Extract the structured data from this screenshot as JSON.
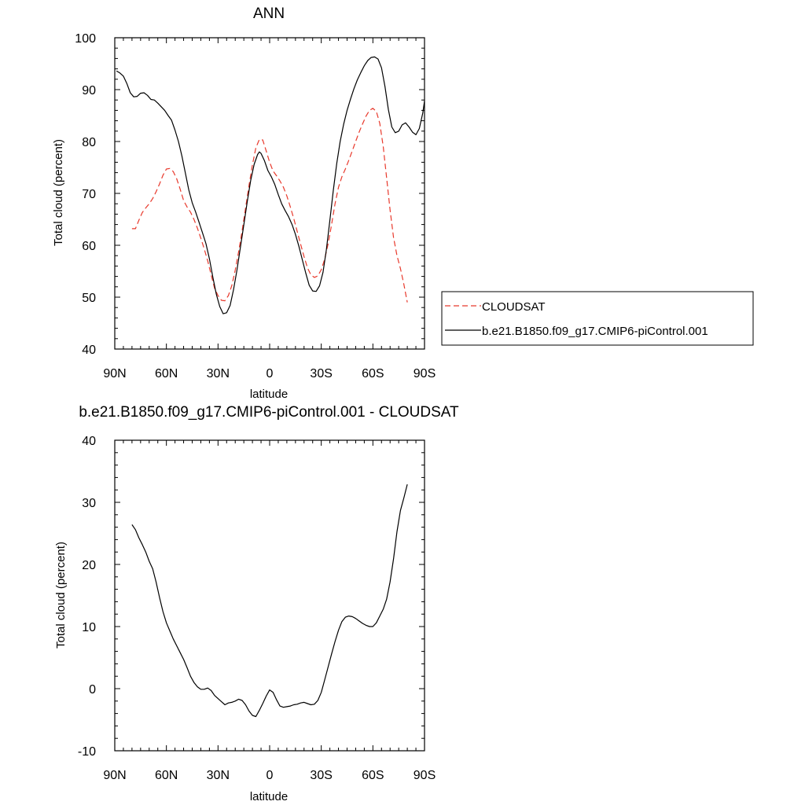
{
  "chart_data": [
    {
      "type": "line",
      "title": "ANN",
      "xlabel": "latitude",
      "ylabel": "Total cloud (percent)",
      "xlim": [
        90,
        -90
      ],
      "ylim": [
        40,
        100
      ],
      "x_ticks": [
        90,
        60,
        30,
        0,
        -30,
        -60,
        -90
      ],
      "x_tick_labels": [
        "90N",
        "60N",
        "30N",
        "0",
        "30S",
        "60S",
        "90S"
      ],
      "y_ticks": [
        40,
        50,
        60,
        70,
        80,
        90,
        100
      ],
      "y_tick_labels": [
        "40",
        "50",
        "60",
        "70",
        "80",
        "90",
        "100"
      ],
      "grid": false,
      "legend_position": "right",
      "series": [
        {
          "name": "CLOUDSAT",
          "color": "#e8392c",
          "dash": "dashed",
          "points": [
            [
              80,
              63.2
            ],
            [
              78,
              63.2
            ],
            [
              76,
              64.8
            ],
            [
              74,
              66.3
            ],
            [
              72,
              67.2
            ],
            [
              70,
              68.0
            ],
            [
              68,
              69.0
            ],
            [
              66,
              70.3
            ],
            [
              64,
              71.8
            ],
            [
              62,
              73.5
            ],
            [
              60,
              74.7
            ],
            [
              58,
              74.8
            ],
            [
              56,
              74.2
            ],
            [
              54,
              72.8
            ],
            [
              52,
              70.8
            ],
            [
              50,
              68.6
            ],
            [
              48,
              67.4
            ],
            [
              46,
              66.4
            ],
            [
              44,
              65.0
            ],
            [
              42,
              63.3
            ],
            [
              40,
              61.4
            ],
            [
              38,
              59.3
            ],
            [
              36,
              57.0
            ],
            [
              34,
              54.3
            ],
            [
              32,
              51.7
            ],
            [
              30,
              50.3
            ],
            [
              28,
              49.4
            ],
            [
              26,
              49.3
            ],
            [
              24,
              50.3
            ],
            [
              22,
              52.2
            ],
            [
              20,
              55.2
            ],
            [
              18,
              58.8
            ],
            [
              16,
              62.8
            ],
            [
              14,
              67.2
            ],
            [
              12,
              71.5
            ],
            [
              10,
              75.5
            ],
            [
              8,
              78.8
            ],
            [
              6,
              80.4
            ],
            [
              4,
              80.3
            ],
            [
              2,
              78.2
            ],
            [
              0,
              76.0
            ],
            [
              -2,
              74.3
            ],
            [
              -4,
              73.4
            ],
            [
              -6,
              72.4
            ],
            [
              -8,
              71.2
            ],
            [
              -10,
              69.5
            ],
            [
              -12,
              67.4
            ],
            [
              -14,
              65.2
            ],
            [
              -16,
              62.7
            ],
            [
              -18,
              60.2
            ],
            [
              -20,
              57.8
            ],
            [
              -22,
              55.6
            ],
            [
              -24,
              54.3
            ],
            [
              -26,
              53.8
            ],
            [
              -28,
              54.1
            ],
            [
              -30,
              55.3
            ],
            [
              -32,
              57.3
            ],
            [
              -34,
              60.3
            ],
            [
              -36,
              64.0
            ],
            [
              -38,
              68.0
            ],
            [
              -40,
              71.2
            ],
            [
              -42,
              73.2
            ],
            [
              -44,
              74.7
            ],
            [
              -46,
              76.4
            ],
            [
              -48,
              78.2
            ],
            [
              -50,
              80.0
            ],
            [
              -52,
              81.8
            ],
            [
              -54,
              83.4
            ],
            [
              -56,
              84.9
            ],
            [
              -58,
              86.0
            ],
            [
              -60,
              86.4
            ],
            [
              -62,
              85.8
            ],
            [
              -64,
              83.5
            ],
            [
              -66,
              79.0
            ],
            [
              -68,
              73.0
            ],
            [
              -70,
              66.8
            ],
            [
              -72,
              61.5
            ],
            [
              -74,
              58.0
            ],
            [
              -76,
              55.5
            ],
            [
              -78,
              52.5
            ],
            [
              -80,
              49.0
            ]
          ]
        },
        {
          "name": "b.e21.B1850.f09_g17.CMIP6-piControl.001",
          "color": "#000000",
          "dash": "solid",
          "points": [
            [
              89,
              93.6
            ],
            [
              87,
              93.2
            ],
            [
              85,
              92.6
            ],
            [
              83,
              91.2
            ],
            [
              81,
              89.4
            ],
            [
              79,
              88.6
            ],
            [
              77,
              88.7
            ],
            [
              75,
              89.3
            ],
            [
              73,
              89.4
            ],
            [
              71,
              88.9
            ],
            [
              69,
              88.1
            ],
            [
              67,
              88.0
            ],
            [
              65,
              87.4
            ],
            [
              63,
              86.7
            ],
            [
              61,
              86.0
            ],
            [
              59,
              85.0
            ],
            [
              57,
              84.1
            ],
            [
              55,
              82.2
            ],
            [
              53,
              80.0
            ],
            [
              51,
              77.2
            ],
            [
              49,
              74.0
            ],
            [
              47,
              70.7
            ],
            [
              45,
              68.2
            ],
            [
              43,
              66.4
            ],
            [
              41,
              64.4
            ],
            [
              39,
              62.4
            ],
            [
              37,
              60.3
            ],
            [
              35,
              57.4
            ],
            [
              33,
              53.8
            ],
            [
              31,
              50.6
            ],
            [
              29,
              48.2
            ],
            [
              27,
              46.8
            ],
            [
              25,
              47.0
            ],
            [
              23,
              48.4
            ],
            [
              21,
              51.4
            ],
            [
              19,
              55.2
            ],
            [
              17,
              59.6
            ],
            [
              15,
              64.0
            ],
            [
              13,
              68.4
            ],
            [
              11,
              72.5
            ],
            [
              9,
              75.6
            ],
            [
              7,
              77.5
            ],
            [
              6,
              78.0
            ],
            [
              5,
              77.7
            ],
            [
              3,
              76.3
            ],
            [
              1,
              74.4
            ],
            [
              -1,
              73.2
            ],
            [
              -3,
              71.7
            ],
            [
              -5,
              69.8
            ],
            [
              -7,
              68.0
            ],
            [
              -9,
              66.7
            ],
            [
              -11,
              65.5
            ],
            [
              -13,
              64.0
            ],
            [
              -15,
              62.1
            ],
            [
              -17,
              59.8
            ],
            [
              -19,
              57.2
            ],
            [
              -21,
              54.6
            ],
            [
              -23,
              52.3
            ],
            [
              -25,
              51.2
            ],
            [
              -27,
              51.1
            ],
            [
              -29,
              52.2
            ],
            [
              -31,
              54.8
            ],
            [
              -33,
              59.2
            ],
            [
              -35,
              64.8
            ],
            [
              -37,
              70.6
            ],
            [
              -39,
              75.8
            ],
            [
              -41,
              80.0
            ],
            [
              -43,
              83.3
            ],
            [
              -45,
              86.0
            ],
            [
              -47,
              88.2
            ],
            [
              -49,
              90.2
            ],
            [
              -51,
              91.9
            ],
            [
              -53,
              93.3
            ],
            [
              -55,
              94.6
            ],
            [
              -57,
              95.6
            ],
            [
              -59,
              96.2
            ],
            [
              -61,
              96.3
            ],
            [
              -63,
              95.9
            ],
            [
              -65,
              94.2
            ],
            [
              -67,
              90.6
            ],
            [
              -69,
              86.2
            ],
            [
              -71,
              82.8
            ],
            [
              -73,
              81.7
            ],
            [
              -75,
              82.0
            ],
            [
              -77,
              83.2
            ],
            [
              -79,
              83.6
            ],
            [
              -81,
              82.8
            ],
            [
              -83,
              81.8
            ],
            [
              -85,
              81.3
            ],
            [
              -87,
              82.5
            ],
            [
              -89,
              85.5
            ],
            [
              -90,
              87.8
            ]
          ]
        }
      ]
    },
    {
      "type": "line",
      "title": "b.e21.B1850.f09_g17.CMIP6-piControl.001 - CLOUDSAT",
      "xlabel": "latitude",
      "ylabel": "Total cloud (percent)",
      "xlim": [
        90,
        -90
      ],
      "ylim": [
        -10,
        40
      ],
      "x_ticks": [
        90,
        60,
        30,
        0,
        -30,
        -60,
        -90
      ],
      "x_tick_labels": [
        "90N",
        "60N",
        "30N",
        "0",
        "30S",
        "60S",
        "90S"
      ],
      "y_ticks": [
        -10,
        0,
        10,
        20,
        30,
        40
      ],
      "y_tick_labels": [
        "-10",
        "0",
        "10",
        "20",
        "30",
        "40"
      ],
      "grid": false,
      "series": [
        {
          "color": "#000000",
          "dash": "solid",
          "points": [
            [
              80,
              26.4
            ],
            [
              78,
              25.6
            ],
            [
              76,
              24.3
            ],
            [
              74,
              23.2
            ],
            [
              72,
              22.0
            ],
            [
              70,
              20.5
            ],
            [
              68,
              19.3
            ],
            [
              66,
              17.2
            ],
            [
              64,
              14.7
            ],
            [
              62,
              12.4
            ],
            [
              60,
              10.6
            ],
            [
              58,
              9.3
            ],
            [
              56,
              8.0
            ],
            [
              54,
              6.9
            ],
            [
              52,
              5.8
            ],
            [
              50,
              4.7
            ],
            [
              48,
              3.4
            ],
            [
              46,
              2.0
            ],
            [
              44,
              1.0
            ],
            [
              42,
              0.3
            ],
            [
              40,
              -0.1
            ],
            [
              38,
              -0.1
            ],
            [
              36,
              0.1
            ],
            [
              34,
              -0.3
            ],
            [
              32,
              -1.1
            ],
            [
              30,
              -1.6
            ],
            [
              28,
              -2.1
            ],
            [
              26,
              -2.6
            ],
            [
              24,
              -2.3
            ],
            [
              22,
              -2.2
            ],
            [
              20,
              -2.0
            ],
            [
              18,
              -1.7
            ],
            [
              16,
              -1.9
            ],
            [
              14,
              -2.6
            ],
            [
              12,
              -3.6
            ],
            [
              10,
              -4.3
            ],
            [
              8,
              -4.5
            ],
            [
              6,
              -3.5
            ],
            [
              4,
              -2.4
            ],
            [
              2,
              -1.2
            ],
            [
              0,
              -0.2
            ],
            [
              -2,
              -0.6
            ],
            [
              -4,
              -1.8
            ],
            [
              -6,
              -2.8
            ],
            [
              -8,
              -3.0
            ],
            [
              -10,
              -2.9
            ],
            [
              -12,
              -2.8
            ],
            [
              -14,
              -2.6
            ],
            [
              -16,
              -2.5
            ],
            [
              -18,
              -2.3
            ],
            [
              -20,
              -2.2
            ],
            [
              -22,
              -2.4
            ],
            [
              -24,
              -2.6
            ],
            [
              -26,
              -2.5
            ],
            [
              -28,
              -1.9
            ],
            [
              -30,
              -0.6
            ],
            [
              -32,
              1.4
            ],
            [
              -34,
              3.5
            ],
            [
              -36,
              5.6
            ],
            [
              -38,
              7.6
            ],
            [
              -40,
              9.4
            ],
            [
              -42,
              10.8
            ],
            [
              -44,
              11.5
            ],
            [
              -46,
              11.7
            ],
            [
              -48,
              11.6
            ],
            [
              -50,
              11.3
            ],
            [
              -52,
              10.9
            ],
            [
              -54,
              10.5
            ],
            [
              -56,
              10.2
            ],
            [
              -58,
              10.0
            ],
            [
              -60,
              10.0
            ],
            [
              -62,
              10.6
            ],
            [
              -64,
              11.7
            ],
            [
              -66,
              12.8
            ],
            [
              -68,
              14.4
            ],
            [
              -70,
              17.2
            ],
            [
              -72,
              20.9
            ],
            [
              -74,
              25.3
            ],
            [
              -76,
              28.7
            ],
            [
              -78,
              30.7
            ],
            [
              -80,
              32.9
            ]
          ]
        }
      ]
    }
  ]
}
